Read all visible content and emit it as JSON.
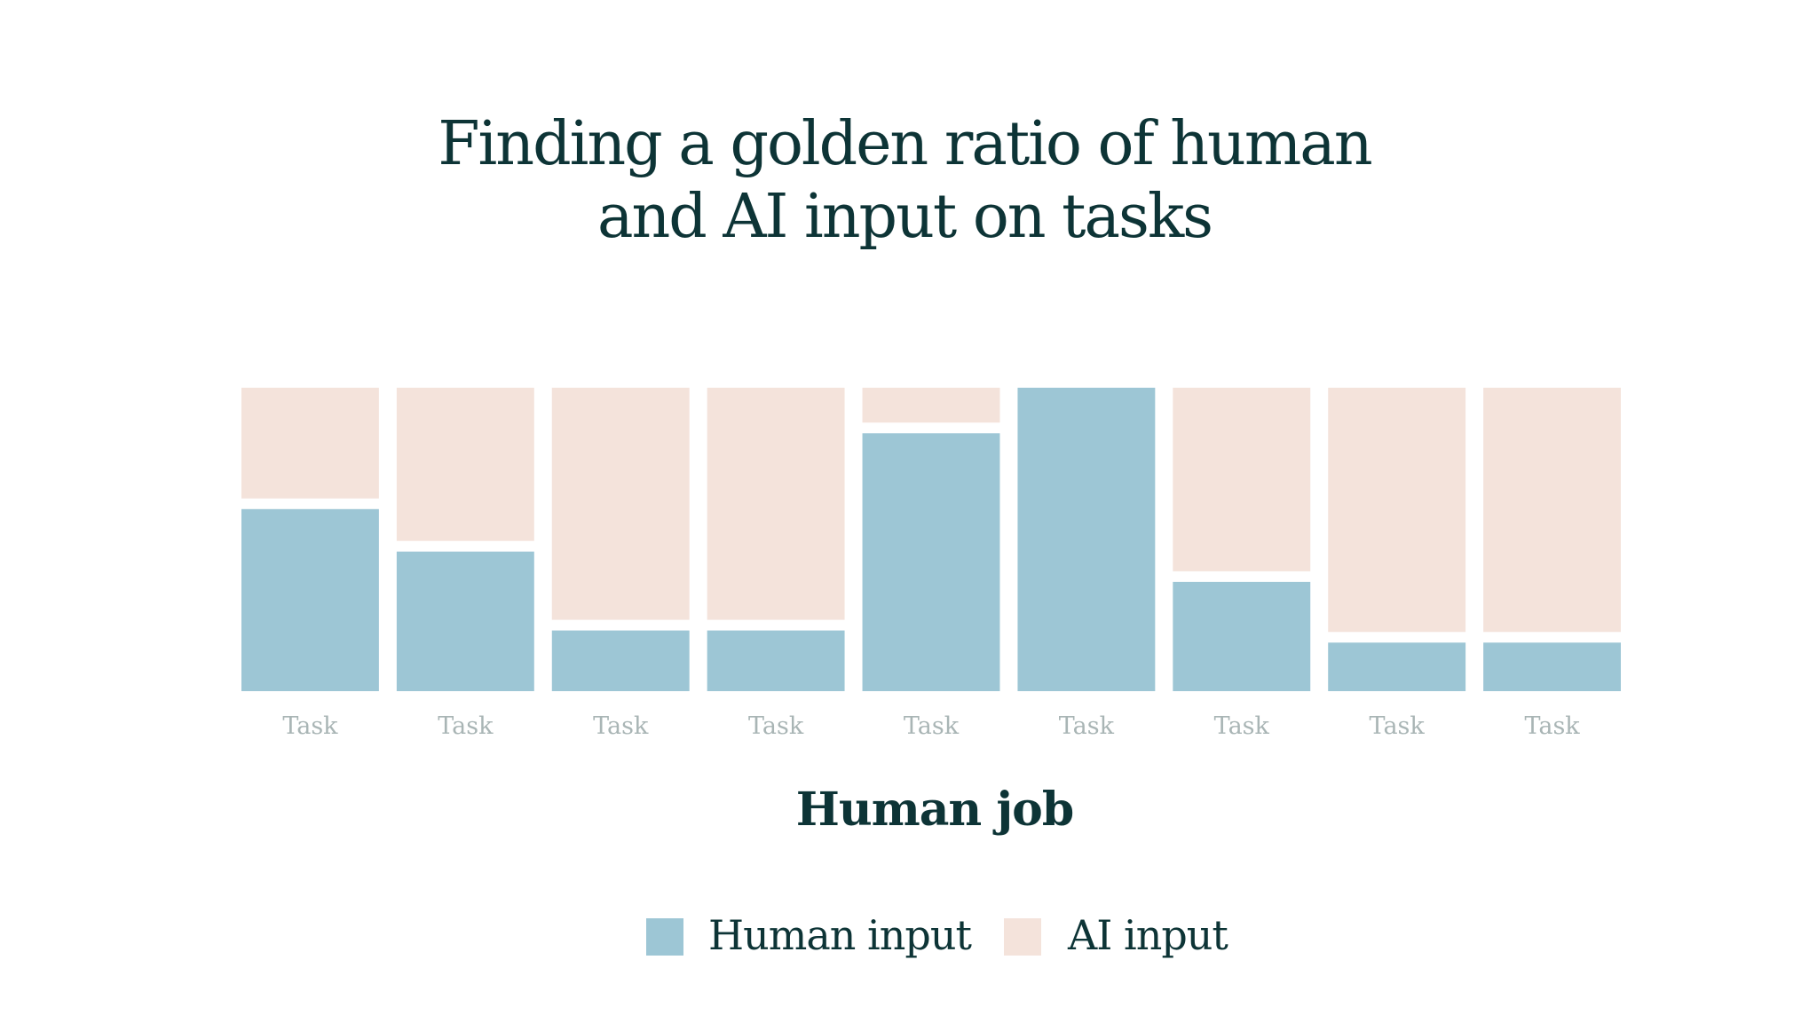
{
  "title_lines": [
    "Finding a golden ratio of human",
    "and AI input on tasks"
  ],
  "xlabel": "Human job",
  "legend": [
    {
      "label": "Human input",
      "color": "#9dc6d5"
    },
    {
      "label": "AI input",
      "color": "#f4e3db"
    }
  ],
  "colors": {
    "human": "#9dc6d5",
    "ai": "#f4e3db",
    "tick_text": "#a9b5b5",
    "text": "#0d3436"
  },
  "chart_data": {
    "type": "bar",
    "stacked": true,
    "categories": [
      "Task",
      "Task",
      "Task",
      "Task",
      "Task",
      "Task",
      "Task",
      "Task",
      "Task"
    ],
    "series": [
      {
        "name": "Human input",
        "values": [
          60,
          46,
          20,
          20,
          85,
          100,
          36,
          16,
          16
        ]
      },
      {
        "name": "AI input",
        "values": [
          40,
          54,
          80,
          80,
          15,
          0,
          64,
          84,
          84
        ]
      }
    ],
    "ylim": [
      0,
      100
    ],
    "grid": false,
    "legend_position": "bottom"
  }
}
